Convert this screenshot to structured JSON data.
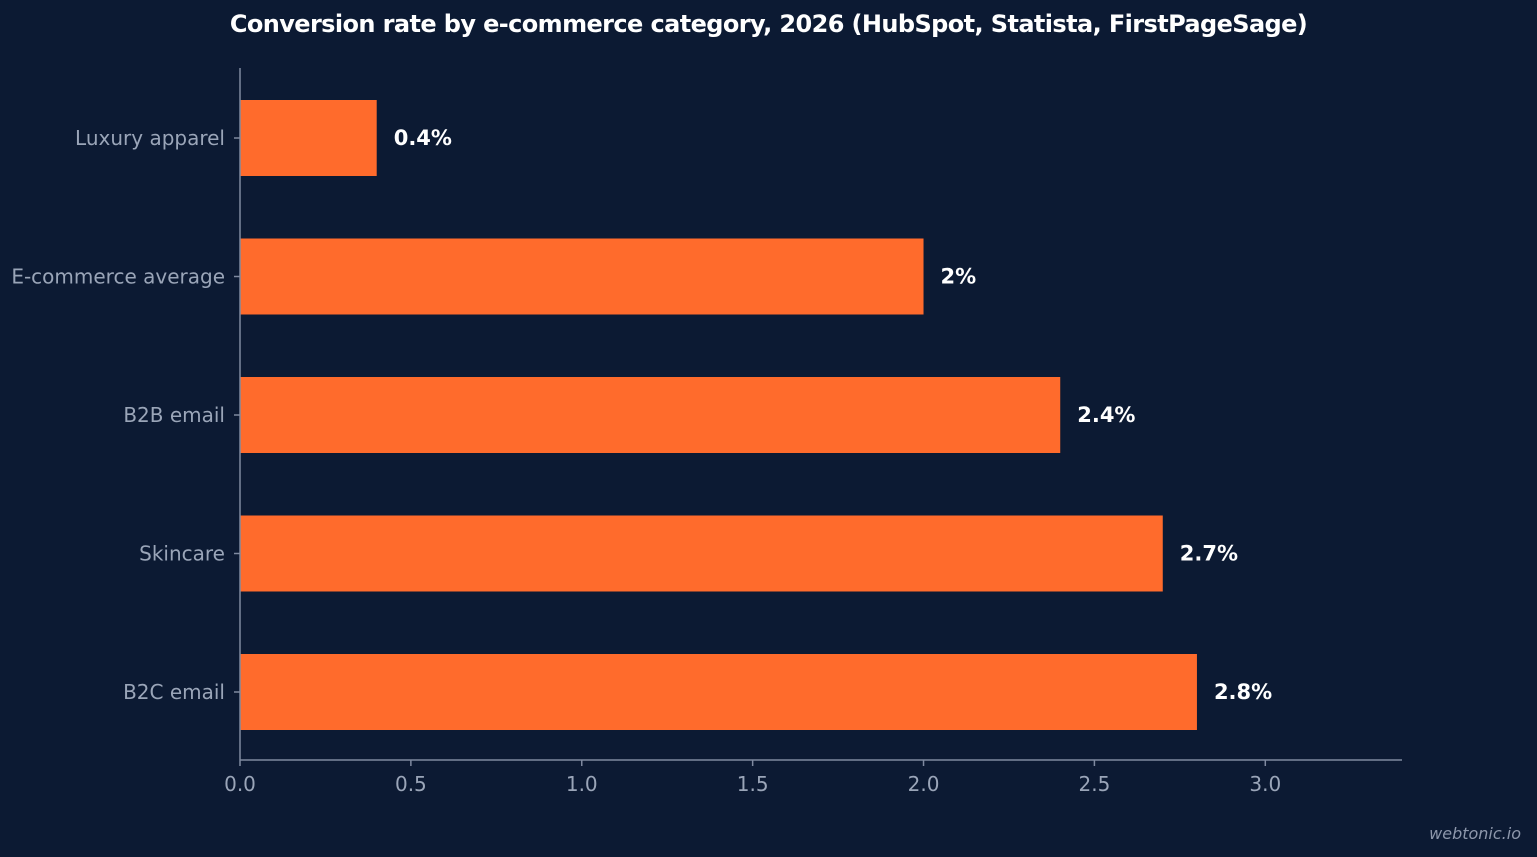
{
  "title": "Conversion rate by e-commerce category, 2026 (HubSpot, Statista, FirstPageSage)",
  "watermark": "webtonic.io",
  "colors": {
    "background": "#0c1a33",
    "bar": "#ff6b2c",
    "axis": "#7f8aa0",
    "tick_text": "#9aa5b8",
    "value_text": "#ffffff"
  },
  "chart_data": {
    "type": "bar",
    "orientation": "horizontal",
    "categories": [
      "Luxury apparel",
      "E-commerce average",
      "B2B email",
      "Skincare",
      "B2C email"
    ],
    "values": [
      0.4,
      2.0,
      2.4,
      2.7,
      2.8
    ],
    "value_labels": [
      "0.4%",
      "2%",
      "2.4%",
      "2.7%",
      "2.8%"
    ],
    "xlim": [
      0,
      3.4
    ],
    "xticks": [
      0.0,
      0.5,
      1.0,
      1.5,
      2.0,
      2.5,
      3.0
    ],
    "xtick_labels": [
      "0.0",
      "0.5",
      "1.0",
      "1.5",
      "2.0",
      "2.5",
      "3.0"
    ],
    "xlabel": "",
    "ylabel": "",
    "grid": false,
    "legend": "none"
  }
}
